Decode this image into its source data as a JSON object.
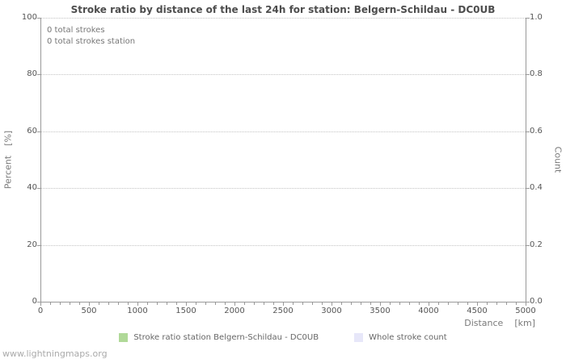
{
  "page": {
    "watermark": "www.lightningmaps.org"
  },
  "labels": {
    "y_left": [
      "Percent",
      "[%]"
    ],
    "y_right": "Count",
    "x": [
      "Distance",
      "[km]"
    ]
  },
  "chart_data": {
    "type": "line",
    "title": "Stroke ratio by distance of the last 24h for station: Belgern-Schildau - DC0UB",
    "xlabel": "Distance [km]",
    "ylabel_left": "Percent [%]",
    "ylabel_right": "Count",
    "xlim": [
      0,
      5000
    ],
    "x_ticks": [
      0,
      500,
      1000,
      1500,
      2000,
      2500,
      3000,
      3500,
      4000,
      4500,
      5000
    ],
    "x_tick_step_major": 500,
    "x_tick_step_minor": 100,
    "ylim_left": [
      0,
      100
    ],
    "y_ticks_left": [
      0,
      20,
      40,
      60,
      80,
      100
    ],
    "ylim_right": [
      0.0,
      1.0
    ],
    "y_ticks_right": [
      "0.0",
      "0.2",
      "0.4",
      "0.6",
      "0.8",
      "1.0"
    ],
    "grid": "horizontal dotted gridlines at left-axis tick values",
    "legend_position": "bottom",
    "annotations": [
      "0 total strokes",
      "0 total strokes station"
    ],
    "series": [
      {
        "name": "Stroke ratio station Belgern-Schildau - DC0UB",
        "color": "#b0d998",
        "values": []
      },
      {
        "name": "Whole stroke count",
        "color": "#e7e7f9",
        "values": []
      }
    ]
  }
}
